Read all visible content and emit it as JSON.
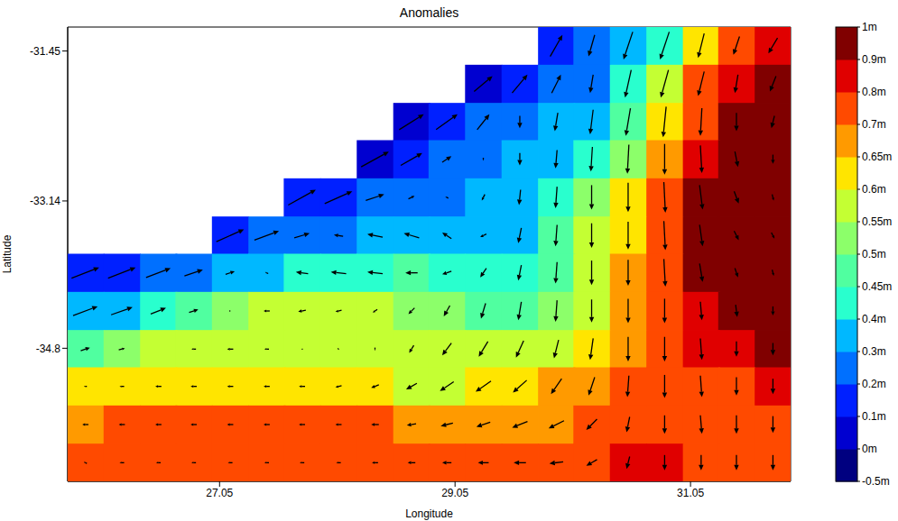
{
  "chart_data": {
    "type": "heatmap",
    "title": "Anomalies",
    "x_label": "Longitude",
    "y_label": "Latitude",
    "x": [
      25.91,
      26.22,
      26.53,
      26.83,
      27.14,
      27.45,
      27.75,
      28.06,
      28.37,
      28.68,
      28.98,
      29.29,
      29.6,
      29.91,
      30.21,
      30.52,
      30.83,
      31.14,
      31.44,
      31.75
    ],
    "y": [
      -31.39,
      -31.82,
      -32.25,
      -32.67,
      -33.1,
      -33.53,
      -33.95,
      -34.38,
      -34.81,
      -35.23,
      -35.66,
      -36.09
    ],
    "values": [
      [
        null,
        null,
        null,
        null,
        null,
        null,
        null,
        null,
        null,
        null,
        null,
        null,
        null,
        0.1,
        0.2,
        0.3,
        0.4,
        0.6,
        0.78,
        0.85
      ],
      [
        null,
        null,
        null,
        null,
        null,
        null,
        null,
        null,
        null,
        null,
        null,
        0.05,
        0.15,
        0.2,
        0.25,
        0.4,
        0.55,
        0.7,
        0.85,
        0.95
      ],
      [
        null,
        null,
        null,
        null,
        null,
        null,
        null,
        null,
        null,
        0.05,
        0.1,
        0.2,
        0.25,
        0.3,
        0.35,
        0.45,
        0.6,
        0.75,
        0.9,
        0.95
      ],
      [
        null,
        null,
        null,
        null,
        null,
        null,
        null,
        null,
        0.05,
        0.1,
        0.2,
        0.25,
        0.3,
        0.35,
        0.42,
        0.5,
        0.65,
        0.85,
        0.95,
        0.95
      ],
      [
        null,
        null,
        null,
        null,
        null,
        null,
        0.1,
        0.15,
        0.2,
        0.2,
        0.25,
        0.3,
        0.32,
        0.42,
        0.5,
        0.6,
        0.7,
        0.92,
        0.95,
        0.95
      ],
      [
        null,
        null,
        null,
        null,
        0.1,
        0.2,
        0.25,
        0.25,
        0.3,
        0.35,
        0.3,
        0.3,
        0.35,
        0.45,
        0.55,
        0.62,
        0.72,
        0.92,
        0.95,
        0.9
      ],
      [
        0.1,
        0.15,
        0.2,
        0.25,
        0.3,
        0.35,
        0.4,
        0.42,
        0.42,
        0.45,
        0.42,
        0.4,
        0.42,
        0.47,
        0.55,
        0.65,
        0.72,
        0.92,
        0.95,
        0.92
      ],
      [
        0.3,
        0.35,
        0.42,
        0.47,
        0.52,
        0.55,
        0.57,
        0.57,
        0.55,
        0.52,
        0.5,
        0.47,
        0.47,
        0.52,
        0.58,
        0.65,
        0.75,
        0.85,
        0.92,
        0.92
      ],
      [
        0.45,
        0.5,
        0.55,
        0.57,
        0.57,
        0.58,
        0.58,
        0.58,
        0.57,
        0.55,
        0.55,
        0.55,
        0.55,
        0.58,
        0.62,
        0.68,
        0.75,
        0.85,
        0.88,
        0.92
      ],
      [
        0.6,
        0.62,
        0.63,
        0.63,
        0.63,
        0.62,
        0.62,
        0.6,
        0.6,
        0.58,
        0.58,
        0.6,
        0.62,
        0.65,
        0.68,
        0.72,
        0.75,
        0.78,
        0.78,
        0.8
      ],
      [
        0.68,
        0.7,
        0.72,
        0.7,
        0.7,
        0.7,
        0.7,
        0.7,
        0.7,
        0.68,
        0.67,
        0.66,
        0.66,
        0.68,
        0.7,
        0.72,
        0.75,
        0.72,
        0.72,
        0.75
      ],
      [
        0.72,
        0.74,
        0.75,
        0.75,
        0.74,
        0.72,
        0.72,
        0.72,
        0.72,
        0.7,
        0.7,
        0.7,
        0.72,
        0.75,
        0.78,
        0.82,
        0.8,
        0.72,
        0.72,
        0.75
      ]
    ],
    "u": [
      [
        null,
        null,
        null,
        null,
        null,
        null,
        null,
        null,
        null,
        null,
        null,
        null,
        null,
        0.4,
        -0.2,
        -0.3,
        -0.3,
        -0.2,
        -0.2,
        -0.3
      ],
      [
        null,
        null,
        null,
        null,
        null,
        null,
        null,
        null,
        null,
        null,
        null,
        0.6,
        0.5,
        0.3,
        -0.1,
        -0.2,
        -0.25,
        -0.2,
        -0.1,
        -0.2
      ],
      [
        null,
        null,
        null,
        null,
        null,
        null,
        null,
        null,
        null,
        0.8,
        0.7,
        0.4,
        0,
        -0.1,
        -0.1,
        -0.15,
        -0.1,
        -0.05,
        0,
        -0.1
      ],
      [
        null,
        null,
        null,
        null,
        null,
        null,
        null,
        null,
        0.9,
        0.7,
        0.3,
        0,
        0,
        -0.05,
        -0.05,
        -0.05,
        0,
        0.05,
        0.1,
        0
      ],
      [
        null,
        null,
        null,
        null,
        null,
        null,
        0.9,
        0.9,
        0.6,
        0.2,
        -0.1,
        -0.1,
        -0.05,
        -0.05,
        0,
        0,
        0.05,
        0.1,
        0.15,
        0.05
      ],
      [
        null,
        null,
        null,
        null,
        0.9,
        0.8,
        0.5,
        -0.3,
        -0.5,
        -0.5,
        -0.3,
        -0.2,
        -0.1,
        -0.05,
        0,
        0,
        0.05,
        0.1,
        0.15,
        0.1
      ],
      [
        0.9,
        0.9,
        0.8,
        0.6,
        0.3,
        -0.1,
        -0.4,
        -0.5,
        -0.5,
        -0.4,
        -0.3,
        -0.2,
        -0.1,
        -0.05,
        0,
        0,
        0.05,
        0.1,
        0.1,
        0.05
      ],
      [
        0.8,
        0.7,
        0.5,
        0.3,
        0.05,
        -0.2,
        -0.25,
        -0.2,
        -0.15,
        -0.2,
        -0.2,
        -0.15,
        -0.1,
        -0.05,
        0,
        0,
        0,
        0.05,
        0.05,
        0
      ],
      [
        0.3,
        0.2,
        0,
        -0.15,
        -0.2,
        -0.15,
        -0.05,
        0.05,
        0,
        -0.15,
        -0.3,
        -0.3,
        -0.25,
        -0.15,
        -0.1,
        0,
        0,
        0.05,
        0,
        0
      ],
      [
        -0.1,
        -0.15,
        -0.2,
        -0.2,
        -0.2,
        -0.2,
        -0.2,
        -0.2,
        -0.25,
        -0.35,
        -0.45,
        -0.5,
        -0.45,
        -0.35,
        -0.2,
        -0.05,
        0,
        0.05,
        0,
        0
      ],
      [
        -0.2,
        -0.2,
        -0.2,
        -0.2,
        -0.2,
        -0.2,
        -0.2,
        -0.2,
        -0.25,
        -0.3,
        -0.4,
        -0.45,
        -0.5,
        -0.5,
        -0.35,
        -0.1,
        0,
        0.05,
        0,
        0
      ],
      [
        -0.1,
        -0.15,
        -0.15,
        -0.15,
        -0.15,
        -0.15,
        -0.15,
        -0.15,
        -0.2,
        -0.25,
        -0.3,
        -0.35,
        -0.4,
        -0.45,
        -0.35,
        -0.1,
        0,
        0,
        0,
        0
      ]
    ],
    "v": [
      [
        null,
        null,
        null,
        null,
        null,
        null,
        null,
        null,
        null,
        null,
        null,
        null,
        null,
        0.7,
        -0.7,
        -0.9,
        -0.9,
        -0.8,
        -0.6,
        -0.5
      ],
      [
        null,
        null,
        null,
        null,
        null,
        null,
        null,
        null,
        null,
        null,
        null,
        0.5,
        0.6,
        0.6,
        -0.6,
        -0.9,
        -0.9,
        -0.8,
        -0.6,
        -0.5
      ],
      [
        null,
        null,
        null,
        null,
        null,
        null,
        null,
        null,
        null,
        0.5,
        0.5,
        0.5,
        -0.4,
        -0.6,
        -0.8,
        -0.9,
        -1.0,
        -0.9,
        -0.6,
        -0.4
      ],
      [
        null,
        null,
        null,
        null,
        null,
        null,
        null,
        null,
        0.5,
        0.4,
        0.2,
        -0.1,
        -0.4,
        -0.6,
        -0.8,
        -0.95,
        -1.0,
        -0.9,
        -0.5,
        -0.3
      ],
      [
        null,
        null,
        null,
        null,
        null,
        null,
        0.5,
        0.4,
        0.2,
        0.1,
        0.05,
        -0.2,
        -0.5,
        -0.7,
        -0.8,
        -0.95,
        -1.0,
        -0.8,
        -0.4,
        -0.2
      ],
      [
        null,
        null,
        null,
        null,
        0.4,
        0.3,
        0.15,
        0.05,
        0.1,
        0.15,
        0.2,
        -0.1,
        -0.5,
        -0.7,
        -0.8,
        -0.9,
        -0.95,
        -0.7,
        -0.3,
        -0.2
      ],
      [
        0.35,
        0.35,
        0.3,
        0.2,
        0.1,
        0.05,
        0.05,
        0.05,
        0.05,
        0,
        -0.1,
        -0.3,
        -0.5,
        -0.7,
        -0.8,
        -0.85,
        -0.9,
        -0.6,
        -0.3,
        -0.2
      ],
      [
        0.3,
        0.25,
        0.2,
        0.1,
        0,
        0,
        -0.05,
        -0.05,
        -0.1,
        -0.2,
        -0.35,
        -0.5,
        -0.6,
        -0.7,
        -0.75,
        -0.8,
        -0.8,
        -0.6,
        -0.4,
        -0.3
      ],
      [
        0.1,
        0.05,
        0,
        0,
        0,
        0,
        0,
        -0.05,
        -0.1,
        -0.25,
        -0.4,
        -0.5,
        -0.55,
        -0.6,
        -0.7,
        -0.8,
        -0.8,
        -0.7,
        -0.5,
        -0.4
      ],
      [
        0,
        0,
        0,
        0,
        0,
        0,
        0,
        -0.05,
        -0.1,
        -0.2,
        -0.3,
        -0.35,
        -0.4,
        -0.5,
        -0.6,
        -0.7,
        -0.75,
        -0.7,
        -0.6,
        -0.5
      ],
      [
        0,
        0,
        0,
        0,
        0,
        0,
        0,
        0,
        0,
        -0.05,
        -0.1,
        -0.15,
        -0.2,
        -0.25,
        -0.35,
        -0.5,
        -0.6,
        -0.6,
        -0.6,
        -0.55
      ],
      [
        0.05,
        0,
        0,
        0,
        0,
        0,
        0,
        0,
        0,
        0,
        0,
        0,
        0,
        -0.05,
        -0.2,
        -0.4,
        -0.5,
        -0.5,
        -0.5,
        -0.5
      ]
    ],
    "xlim": [
      25.76,
      31.9
    ],
    "ylim": [
      -36.3,
      -31.18
    ],
    "xticks": [
      27.05,
      29.05,
      31.05
    ],
    "yticks": [
      -31.45,
      -33.14,
      -34.8
    ],
    "colorbar": {
      "range": [
        -0.5,
        1
      ],
      "colors": [
        "#000080",
        "#0000d0",
        "#0020ff",
        "#0070ff",
        "#00b8ff",
        "#29ffce",
        "#50ffa0",
        "#8cff6a",
        "#c4ff33",
        "#ffe500",
        "#ff9a00",
        "#ff4a00",
        "#e00000",
        "#800000"
      ],
      "ticks": [
        {
          "value": -0.5,
          "label": "-0.5m"
        },
        {
          "value": 0,
          "label": "0m"
        },
        {
          "value": 0.1,
          "label": "0.1m"
        },
        {
          "value": 0.2,
          "label": "0.2m"
        },
        {
          "value": 0.3,
          "label": "0.3m"
        },
        {
          "value": 0.4,
          "label": "0.4m"
        },
        {
          "value": 0.45,
          "label": "0.45m"
        },
        {
          "value": 0.5,
          "label": "0.5m"
        },
        {
          "value": 0.55,
          "label": "0.55m"
        },
        {
          "value": 0.6,
          "label": "0.6m"
        },
        {
          "value": 0.65,
          "label": "0.65m"
        },
        {
          "value": 0.7,
          "label": "0.7m"
        },
        {
          "value": 0.8,
          "label": "0.8m"
        },
        {
          "value": 0.9,
          "label": "0.9m"
        },
        {
          "value": 1,
          "label": "1m"
        }
      ]
    }
  }
}
